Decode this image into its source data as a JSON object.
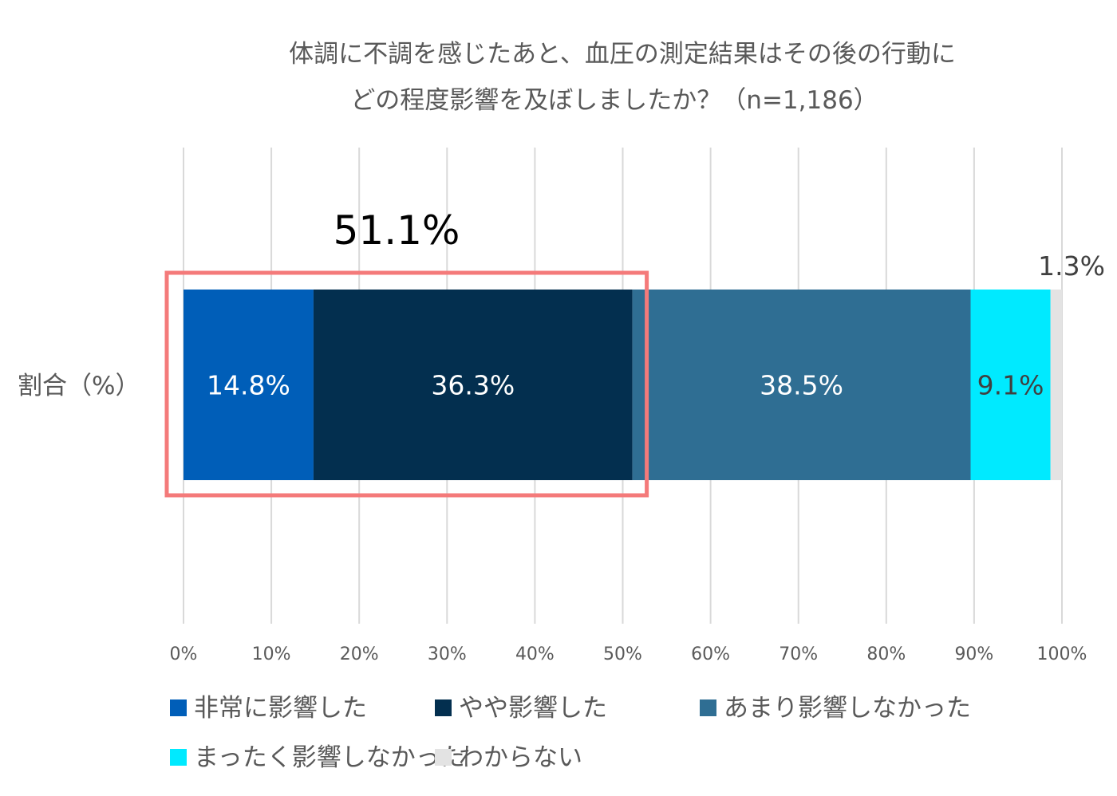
{
  "chart_data": {
    "type": "bar",
    "orientation": "horizontal",
    "stacked": true,
    "title": [
      "体調に不調を感じたあと、血圧の測定結果はその後の行動に",
      "どの程度影響を及ぼしましたか？（n=1,186）"
    ],
    "categories": [
      "割合（%）"
    ],
    "series": [
      {
        "name": "非常に影響した",
        "values": [
          14.8
        ],
        "label": "14.8%",
        "color": "#005EB8",
        "label_color": "#FFFFFF"
      },
      {
        "name": "やや影響した",
        "values": [
          36.3
        ],
        "label": "36.3%",
        "color": "#032F4F",
        "label_color": "#FFFFFF"
      },
      {
        "name": "あまり影響しなかった",
        "values": [
          38.5
        ],
        "label": "38.5%",
        "color": "#2F6E93",
        "label_color": "#FFFFFF"
      },
      {
        "name": "まったく影響しなかった",
        "values": [
          9.1
        ],
        "label": "9.1%",
        "color": "#00EAFF",
        "label_color": "#404040"
      },
      {
        "name": "わからない",
        "values": [
          1.3
        ],
        "label": "1.3%",
        "color": "#E3E3E3",
        "label_color": "#404040"
      }
    ],
    "xlim": [
      0,
      100
    ],
    "xticks": [
      "0%",
      "10%",
      "20%",
      "30%",
      "40%",
      "50%",
      "60%",
      "70%",
      "80%",
      "90%",
      "100%"
    ],
    "grid": true,
    "legend_position": "bottom",
    "annotation": {
      "text": "51.1%",
      "range": [
        0,
        51.1
      ],
      "box_color": "#F47A7A"
    }
  }
}
